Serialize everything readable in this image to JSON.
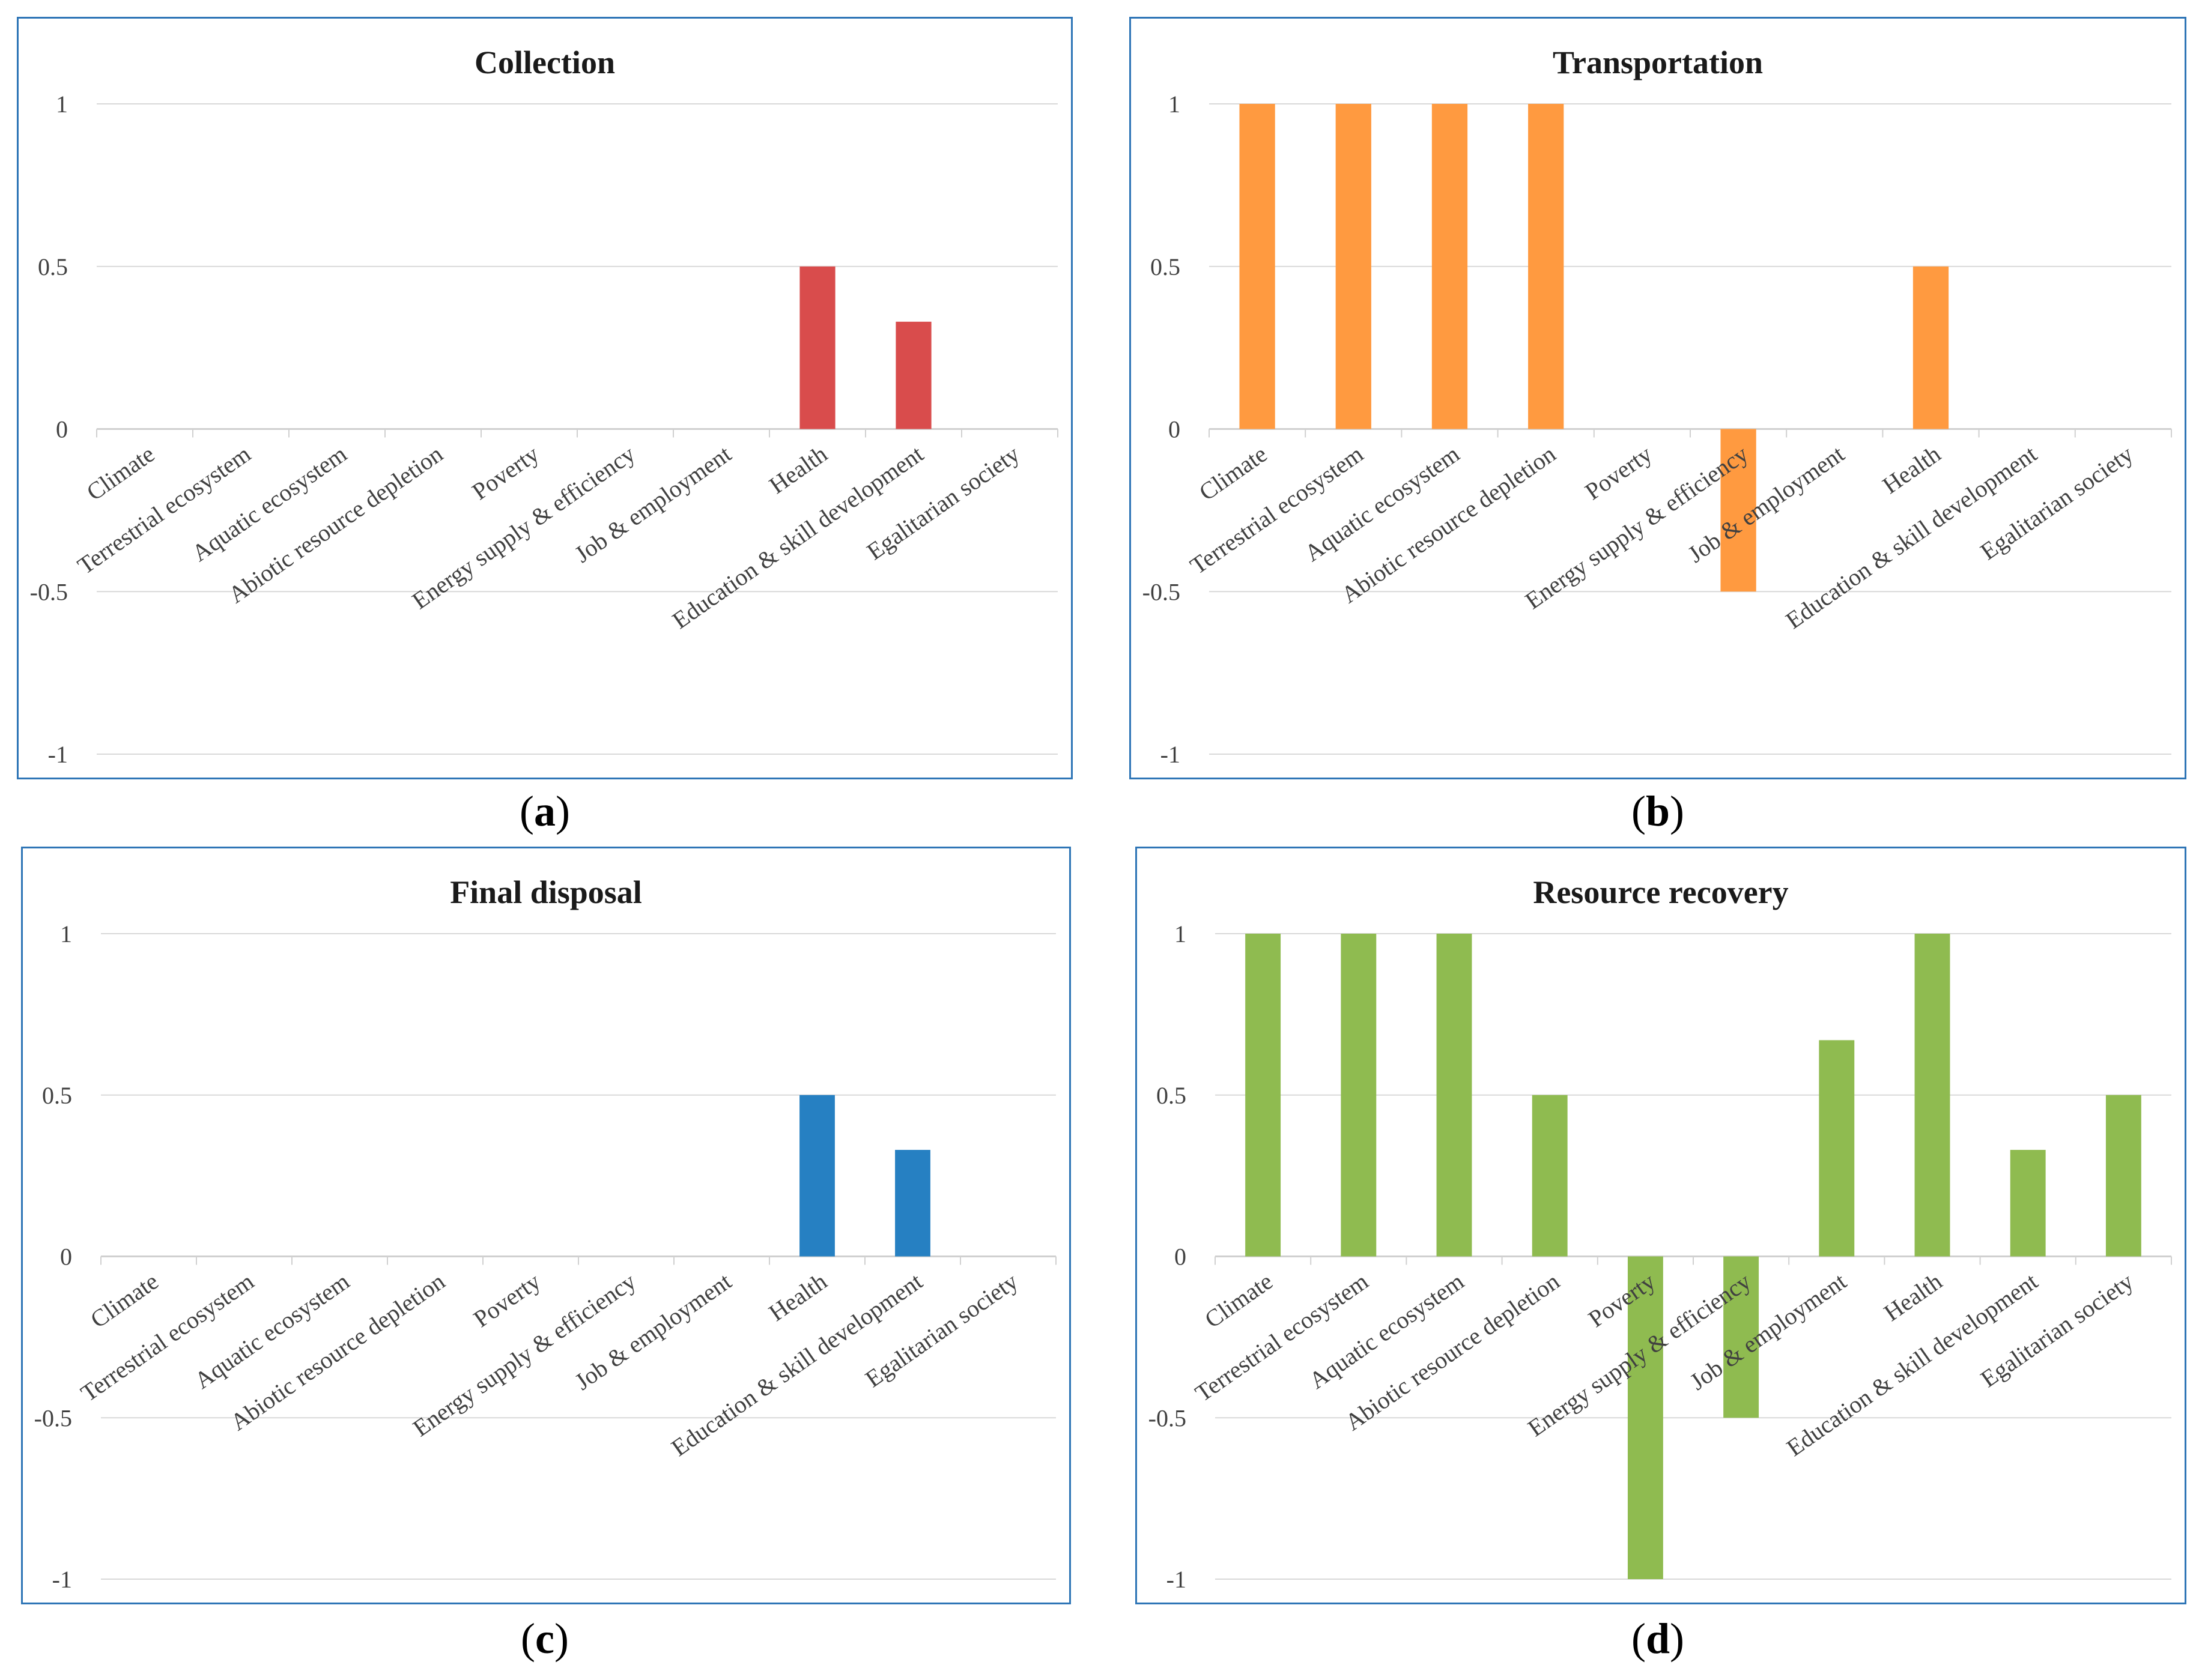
{
  "chart_data": [
    {
      "type": "bar",
      "panel": "a",
      "title": "Collection",
      "color": "#d94c4c",
      "categories": [
        "Climate",
        "Terrestrial ecosystem",
        "Aquatic ecosystem",
        "Abiotic resource depletion",
        "Poverty",
        "Energy supply & efficiency",
        "Job & employment",
        "Health",
        "Education & skill development",
        "Egalitarian society"
      ],
      "values": [
        0,
        0,
        0,
        0,
        0,
        0,
        0,
        0.5,
        0.33,
        0
      ],
      "yticks": [
        "1",
        "0.5",
        "0",
        "-0.5",
        "-1"
      ],
      "ylim": [
        -1,
        1
      ]
    },
    {
      "type": "bar",
      "panel": "b",
      "title": "Transportation",
      "color": "#ff9a40",
      "categories": [
        "Climate",
        "Terrestrial ecosystem",
        "Aquatic ecosystem",
        "Abiotic resource depletion",
        "Poverty",
        "Energy supply & efficiency",
        "Job & employment",
        "Health",
        "Education & skill development",
        "Egalitarian society"
      ],
      "values": [
        1,
        1,
        1,
        1,
        0,
        -0.5,
        0,
        0.5,
        0,
        0
      ],
      "yticks": [
        "1",
        "0.5",
        "0",
        "-0.5",
        "-1"
      ],
      "ylim": [
        -1,
        1
      ]
    },
    {
      "type": "bar",
      "panel": "c",
      "title": "Final disposal",
      "color": "#2680c2",
      "categories": [
        "Climate",
        "Terrestrial ecosystem",
        "Aquatic ecosystem",
        "Abiotic resource depletion",
        "Poverty",
        "Energy supply & efficiency",
        "Job & employment",
        "Health",
        "Education & skill development",
        "Egalitarian society"
      ],
      "values": [
        0,
        0,
        0,
        0,
        0,
        0,
        0,
        0.5,
        0.33,
        0
      ],
      "yticks": [
        "1",
        "0.5",
        "0",
        "-0.5",
        "-1"
      ],
      "ylim": [
        -1,
        1
      ]
    },
    {
      "type": "bar",
      "panel": "d",
      "title": "Resource recovery",
      "color": "#8fbb50",
      "categories": [
        "Climate",
        "Terrestrial ecosystem",
        "Aquatic ecosystem",
        "Abiotic resource depletion",
        "Poverty",
        "Energy supply & efficiency",
        "Job & employment",
        "Health",
        "Education & skill development",
        "Egalitarian society"
      ],
      "values": [
        1,
        1,
        1,
        0.5,
        -1,
        -0.5,
        0.67,
        1,
        0.33,
        0.5
      ],
      "yticks": [
        "1",
        "0.5",
        "0",
        "-0.5",
        "-1"
      ],
      "ylim": [
        -1,
        1
      ]
    }
  ],
  "captions": {
    "a": {
      "open": "(",
      "letter": "a",
      "close": ")"
    },
    "b": {
      "open": "(",
      "letter": "b",
      "close": ")"
    },
    "c": {
      "open": "(",
      "letter": "c",
      "close": ")"
    },
    "d": {
      "open": "(",
      "letter": "d",
      "close": ")"
    }
  },
  "colors": {
    "gridline": "#d9d9d9",
    "axis_line": "#d0d0d0",
    "border": "#2e75b6"
  }
}
